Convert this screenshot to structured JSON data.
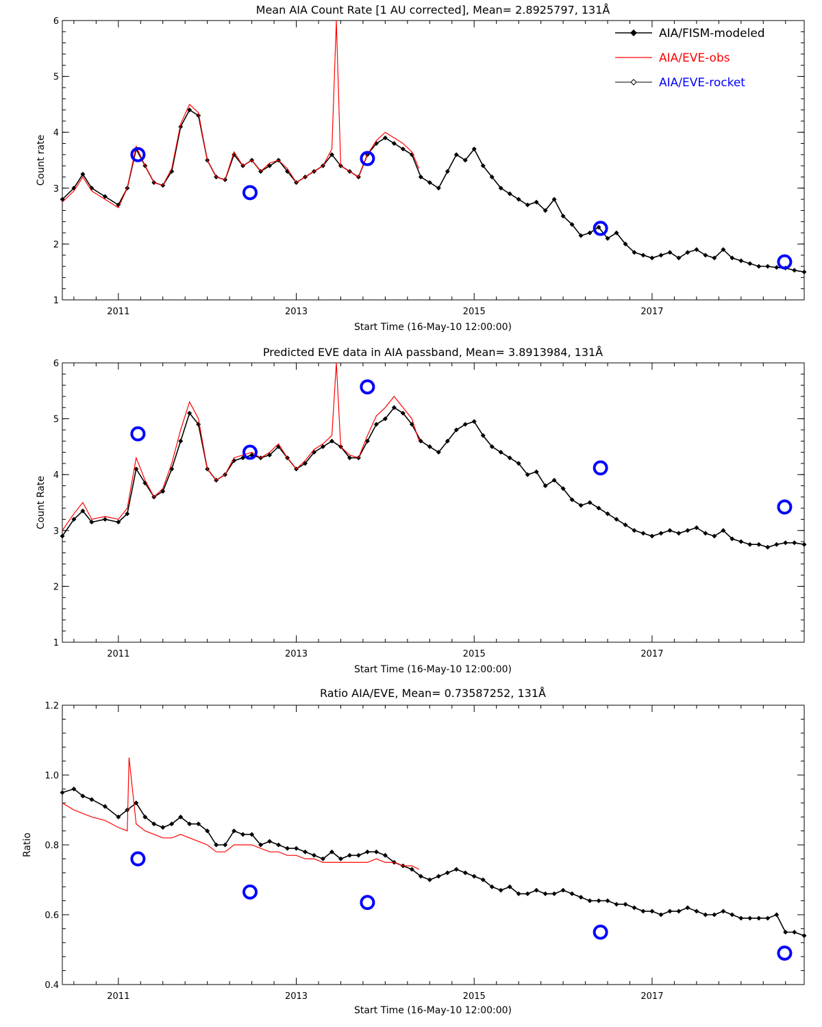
{
  "chart_data": [
    {
      "type": "line",
      "title": "Mean AIA Count Rate [1 AU corrected], Mean= 2.8925797, 131Å",
      "xlabel": "Start Time (16-May-10 12:00:00)",
      "ylabel": "Count rate",
      "xlim": [
        2010.37,
        2018.71
      ],
      "ylim": [
        1,
        6
      ],
      "x_ticks": [
        2011,
        2013,
        2015,
        2017
      ],
      "y_ticks": [
        1,
        2,
        3,
        4,
        5,
        6
      ],
      "legend": {
        "position": "top-right",
        "entries": [
          {
            "label": "AIA/FISM-modeled",
            "color": "#000000"
          },
          {
            "label": "AIA/EVE-obs",
            "color": "#ff0000"
          },
          {
            "label": "AIA/EVE-rocket",
            "color": "#0000ff"
          }
        ]
      },
      "series": [
        {
          "name": "AIA/FISM-modeled",
          "color": "#000000",
          "x": [
            2010.37,
            2010.5,
            2010.6,
            2010.7,
            2010.85,
            2011.0,
            2011.1,
            2011.2,
            2011.3,
            2011.4,
            2011.5,
            2011.6,
            2011.7,
            2011.8,
            2011.9,
            2012.0,
            2012.1,
            2012.2,
            2012.3,
            2012.4,
            2012.5,
            2012.6,
            2012.7,
            2012.8,
            2012.9,
            2013.0,
            2013.1,
            2013.2,
            2013.3,
            2013.4,
            2013.5,
            2013.6,
            2013.7,
            2013.8,
            2013.9,
            2014.0,
            2014.1,
            2014.2,
            2014.3,
            2014.4,
            2014.5,
            2014.6,
            2014.7,
            2014.8,
            2014.9,
            2015.0,
            2015.1,
            2015.2,
            2015.3,
            2015.4,
            2015.5,
            2015.6,
            2015.7,
            2015.8,
            2015.9,
            2016.0,
            2016.1,
            2016.2,
            2016.3,
            2016.4,
            2016.5,
            2016.6,
            2016.7,
            2016.8,
            2016.9,
            2017.0,
            2017.1,
            2017.2,
            2017.3,
            2017.4,
            2017.5,
            2017.6,
            2017.7,
            2017.8,
            2017.9,
            2018.0,
            2018.1,
            2018.2,
            2018.3,
            2018.4,
            2018.5,
            2018.6,
            2018.71
          ],
          "values": [
            2.8,
            3.0,
            3.25,
            3.0,
            2.85,
            2.7,
            3.0,
            3.7,
            3.4,
            3.1,
            3.05,
            3.3,
            4.1,
            4.4,
            4.3,
            3.5,
            3.2,
            3.15,
            3.6,
            3.4,
            3.5,
            3.3,
            3.4,
            3.5,
            3.3,
            3.1,
            3.2,
            3.3,
            3.4,
            3.6,
            3.4,
            3.3,
            3.2,
            3.6,
            3.8,
            3.9,
            3.8,
            3.7,
            3.6,
            3.2,
            3.1,
            3.0,
            3.3,
            3.6,
            3.5,
            3.7,
            3.4,
            3.2,
            3.0,
            2.9,
            2.8,
            2.7,
            2.75,
            2.6,
            2.8,
            2.5,
            2.35,
            2.15,
            2.2,
            2.3,
            2.1,
            2.2,
            2.0,
            1.85,
            1.8,
            1.75,
            1.8,
            1.85,
            1.75,
            1.85,
            1.9,
            1.8,
            1.75,
            1.9,
            1.75,
            1.7,
            1.65,
            1.6,
            1.6,
            1.58,
            1.57,
            1.53,
            1.5
          ]
        },
        {
          "name": "AIA/EVE-obs",
          "color": "#ff0000",
          "x": [
            2010.37,
            2010.5,
            2010.6,
            2010.7,
            2010.85,
            2011.0,
            2011.1,
            2011.2,
            2011.3,
            2011.4,
            2011.5,
            2011.6,
            2011.7,
            2011.8,
            2011.9,
            2012.0,
            2012.1,
            2012.2,
            2012.3,
            2012.4,
            2012.5,
            2012.6,
            2012.7,
            2012.8,
            2012.9,
            2013.0,
            2013.1,
            2013.2,
            2013.3,
            2013.4,
            2013.45,
            2013.5,
            2013.6,
            2013.7,
            2013.8,
            2013.9,
            2014.0,
            2014.1,
            2014.2,
            2014.3,
            2014.38
          ],
          "values": [
            2.75,
            2.95,
            3.2,
            2.95,
            2.8,
            2.65,
            3.0,
            3.75,
            3.4,
            3.1,
            3.05,
            3.35,
            4.15,
            4.5,
            4.35,
            3.5,
            3.2,
            3.15,
            3.65,
            3.4,
            3.5,
            3.3,
            3.45,
            3.5,
            3.35,
            3.1,
            3.2,
            3.3,
            3.4,
            3.7,
            6.0,
            3.4,
            3.3,
            3.2,
            3.6,
            3.85,
            4.0,
            3.9,
            3.8,
            3.65,
            3.35
          ]
        },
        {
          "name": "AIA/EVE-rocket",
          "color": "#0000ff",
          "marker": "circle",
          "x": [
            2011.22,
            2012.48,
            2013.8,
            2016.42,
            2018.49
          ],
          "values": [
            3.6,
            2.92,
            3.53,
            2.28,
            1.68
          ]
        }
      ]
    },
    {
      "type": "line",
      "title": "Predicted EVE data in AIA passband, Mean= 3.8913984, 131Å",
      "xlabel": "Start Time (16-May-10 12:00:00)",
      "ylabel": "Count Rate",
      "xlim": [
        2010.37,
        2018.71
      ],
      "ylim": [
        1,
        6
      ],
      "x_ticks": [
        2011,
        2013,
        2015,
        2017
      ],
      "y_ticks": [
        1,
        2,
        3,
        4,
        5,
        6
      ],
      "series": [
        {
          "name": "AIA/FISM-modeled",
          "color": "#000000",
          "x": [
            2010.37,
            2010.5,
            2010.6,
            2010.7,
            2010.85,
            2011.0,
            2011.1,
            2011.2,
            2011.3,
            2011.4,
            2011.5,
            2011.6,
            2011.7,
            2011.8,
            2011.9,
            2012.0,
            2012.1,
            2012.2,
            2012.3,
            2012.4,
            2012.5,
            2012.6,
            2012.7,
            2012.8,
            2012.9,
            2013.0,
            2013.1,
            2013.2,
            2013.3,
            2013.4,
            2013.5,
            2013.6,
            2013.7,
            2013.8,
            2013.9,
            2014.0,
            2014.1,
            2014.2,
            2014.3,
            2014.4,
            2014.5,
            2014.6,
            2014.7,
            2014.8,
            2014.9,
            2015.0,
            2015.1,
            2015.2,
            2015.3,
            2015.4,
            2015.5,
            2015.6,
            2015.7,
            2015.8,
            2015.9,
            2016.0,
            2016.1,
            2016.2,
            2016.3,
            2016.4,
            2016.5,
            2016.6,
            2016.7,
            2016.8,
            2016.9,
            2017.0,
            2017.1,
            2017.2,
            2017.3,
            2017.4,
            2017.5,
            2017.6,
            2017.7,
            2017.8,
            2017.9,
            2018.0,
            2018.1,
            2018.2,
            2018.3,
            2018.4,
            2018.5,
            2018.6,
            2018.71
          ],
          "values": [
            2.9,
            3.2,
            3.35,
            3.15,
            3.2,
            3.15,
            3.3,
            4.1,
            3.85,
            3.6,
            3.7,
            4.1,
            4.6,
            5.1,
            4.9,
            4.1,
            3.9,
            4.0,
            4.25,
            4.3,
            4.35,
            4.3,
            4.35,
            4.5,
            4.3,
            4.1,
            4.2,
            4.4,
            4.5,
            4.6,
            4.5,
            4.3,
            4.3,
            4.6,
            4.9,
            5.0,
            5.2,
            5.1,
            4.9,
            4.6,
            4.5,
            4.4,
            4.6,
            4.8,
            4.9,
            4.95,
            4.7,
            4.5,
            4.4,
            4.3,
            4.2,
            4.0,
            4.05,
            3.8,
            3.9,
            3.75,
            3.55,
            3.45,
            3.5,
            3.4,
            3.3,
            3.2,
            3.1,
            3.0,
            2.95,
            2.9,
            2.95,
            3.0,
            2.95,
            3.0,
            3.05,
            2.95,
            2.9,
            3.0,
            2.85,
            2.8,
            2.75,
            2.75,
            2.7,
            2.75,
            2.78,
            2.78,
            2.75
          ]
        },
        {
          "name": "AIA/EVE-obs",
          "color": "#ff0000",
          "x": [
            2010.37,
            2010.5,
            2010.6,
            2010.7,
            2010.85,
            2011.0,
            2011.1,
            2011.2,
            2011.3,
            2011.4,
            2011.5,
            2011.6,
            2011.7,
            2011.8,
            2011.9,
            2012.0,
            2012.1,
            2012.2,
            2012.3,
            2012.4,
            2012.5,
            2012.6,
            2012.7,
            2012.8,
            2012.9,
            2013.0,
            2013.1,
            2013.2,
            2013.3,
            2013.4,
            2013.45,
            2013.5,
            2013.6,
            2013.7,
            2013.8,
            2013.9,
            2014.0,
            2014.1,
            2014.2,
            2014.3,
            2014.38
          ],
          "values": [
            3.0,
            3.3,
            3.5,
            3.2,
            3.25,
            3.2,
            3.4,
            4.3,
            3.9,
            3.6,
            3.75,
            4.2,
            4.8,
            5.3,
            5.0,
            4.1,
            3.9,
            4.0,
            4.3,
            4.35,
            4.4,
            4.3,
            4.4,
            4.55,
            4.3,
            4.1,
            4.25,
            4.45,
            4.55,
            4.7,
            6.0,
            4.5,
            4.35,
            4.3,
            4.7,
            5.05,
            5.2,
            5.4,
            5.2,
            5.0,
            4.6
          ]
        },
        {
          "name": "AIA/EVE-rocket",
          "color": "#0000ff",
          "marker": "circle",
          "x": [
            2011.22,
            2012.48,
            2013.8,
            2016.42,
            2018.49
          ],
          "values": [
            4.73,
            4.4,
            5.57,
            4.12,
            3.42
          ]
        }
      ]
    },
    {
      "type": "line",
      "title": "Ratio AIA/EVE, Mean= 0.73587252, 131Å",
      "xlabel": "Start Time (16-May-10 12:00:00)",
      "ylabel": "Ratio",
      "xlim": [
        2010.37,
        2018.71
      ],
      "ylim": [
        0.4,
        1.2
      ],
      "x_ticks": [
        2011,
        2013,
        2015,
        2017
      ],
      "y_ticks": [
        0.4,
        0.6,
        0.8,
        1.0,
        1.2
      ],
      "series": [
        {
          "name": "AIA/FISM-modeled",
          "color": "#000000",
          "x": [
            2010.37,
            2010.5,
            2010.6,
            2010.7,
            2010.85,
            2011.0,
            2011.1,
            2011.2,
            2011.3,
            2011.4,
            2011.5,
            2011.6,
            2011.7,
            2011.8,
            2011.9,
            2012.0,
            2012.1,
            2012.2,
            2012.3,
            2012.4,
            2012.5,
            2012.6,
            2012.7,
            2012.8,
            2012.9,
            2013.0,
            2013.1,
            2013.2,
            2013.3,
            2013.4,
            2013.5,
            2013.6,
            2013.7,
            2013.8,
            2013.9,
            2014.0,
            2014.1,
            2014.2,
            2014.3,
            2014.4,
            2014.5,
            2014.6,
            2014.7,
            2014.8,
            2014.9,
            2015.0,
            2015.1,
            2015.2,
            2015.3,
            2015.4,
            2015.5,
            2015.6,
            2015.7,
            2015.8,
            2015.9,
            2016.0,
            2016.1,
            2016.2,
            2016.3,
            2016.4,
            2016.5,
            2016.6,
            2016.7,
            2016.8,
            2016.9,
            2017.0,
            2017.1,
            2017.2,
            2017.3,
            2017.4,
            2017.5,
            2017.6,
            2017.7,
            2017.8,
            2017.9,
            2018.0,
            2018.1,
            2018.2,
            2018.3,
            2018.4,
            2018.5,
            2018.6,
            2018.71
          ],
          "values": [
            0.95,
            0.96,
            0.94,
            0.93,
            0.91,
            0.88,
            0.9,
            0.92,
            0.88,
            0.86,
            0.85,
            0.86,
            0.88,
            0.86,
            0.86,
            0.84,
            0.8,
            0.8,
            0.84,
            0.83,
            0.83,
            0.8,
            0.81,
            0.8,
            0.79,
            0.79,
            0.78,
            0.77,
            0.76,
            0.78,
            0.76,
            0.77,
            0.77,
            0.78,
            0.78,
            0.77,
            0.75,
            0.74,
            0.73,
            0.71,
            0.7,
            0.71,
            0.72,
            0.73,
            0.72,
            0.71,
            0.7,
            0.68,
            0.67,
            0.68,
            0.66,
            0.66,
            0.67,
            0.66,
            0.66,
            0.67,
            0.66,
            0.65,
            0.64,
            0.64,
            0.64,
            0.63,
            0.63,
            0.62,
            0.61,
            0.61,
            0.6,
            0.61,
            0.61,
            0.62,
            0.61,
            0.6,
            0.6,
            0.61,
            0.6,
            0.59,
            0.59,
            0.59,
            0.59,
            0.6,
            0.55,
            0.55,
            0.54
          ]
        },
        {
          "name": "AIA/EVE-obs",
          "color": "#ff0000",
          "x": [
            2010.37,
            2010.5,
            2010.6,
            2010.7,
            2010.85,
            2011.0,
            2011.1,
            2011.12,
            2011.2,
            2011.3,
            2011.4,
            2011.5,
            2011.6,
            2011.7,
            2011.8,
            2011.9,
            2012.0,
            2012.1,
            2012.2,
            2012.3,
            2012.4,
            2012.5,
            2012.6,
            2012.7,
            2012.8,
            2012.9,
            2013.0,
            2013.1,
            2013.2,
            2013.3,
            2013.4,
            2013.5,
            2013.6,
            2013.7,
            2013.8,
            2013.9,
            2014.0,
            2014.1,
            2014.2,
            2014.3,
            2014.38
          ],
          "values": [
            0.92,
            0.9,
            0.89,
            0.88,
            0.87,
            0.85,
            0.84,
            1.05,
            0.86,
            0.84,
            0.83,
            0.82,
            0.82,
            0.83,
            0.82,
            0.81,
            0.8,
            0.78,
            0.78,
            0.8,
            0.8,
            0.8,
            0.79,
            0.78,
            0.78,
            0.77,
            0.77,
            0.76,
            0.76,
            0.75,
            0.75,
            0.75,
            0.75,
            0.75,
            0.75,
            0.76,
            0.75,
            0.75,
            0.74,
            0.74,
            0.73
          ]
        },
        {
          "name": "AIA/EVE-rocket",
          "color": "#0000ff",
          "marker": "circle",
          "x": [
            2011.22,
            2012.48,
            2013.8,
            2016.42,
            2018.49
          ],
          "values": [
            0.76,
            0.665,
            0.635,
            0.55,
            0.49
          ]
        }
      ]
    }
  ]
}
